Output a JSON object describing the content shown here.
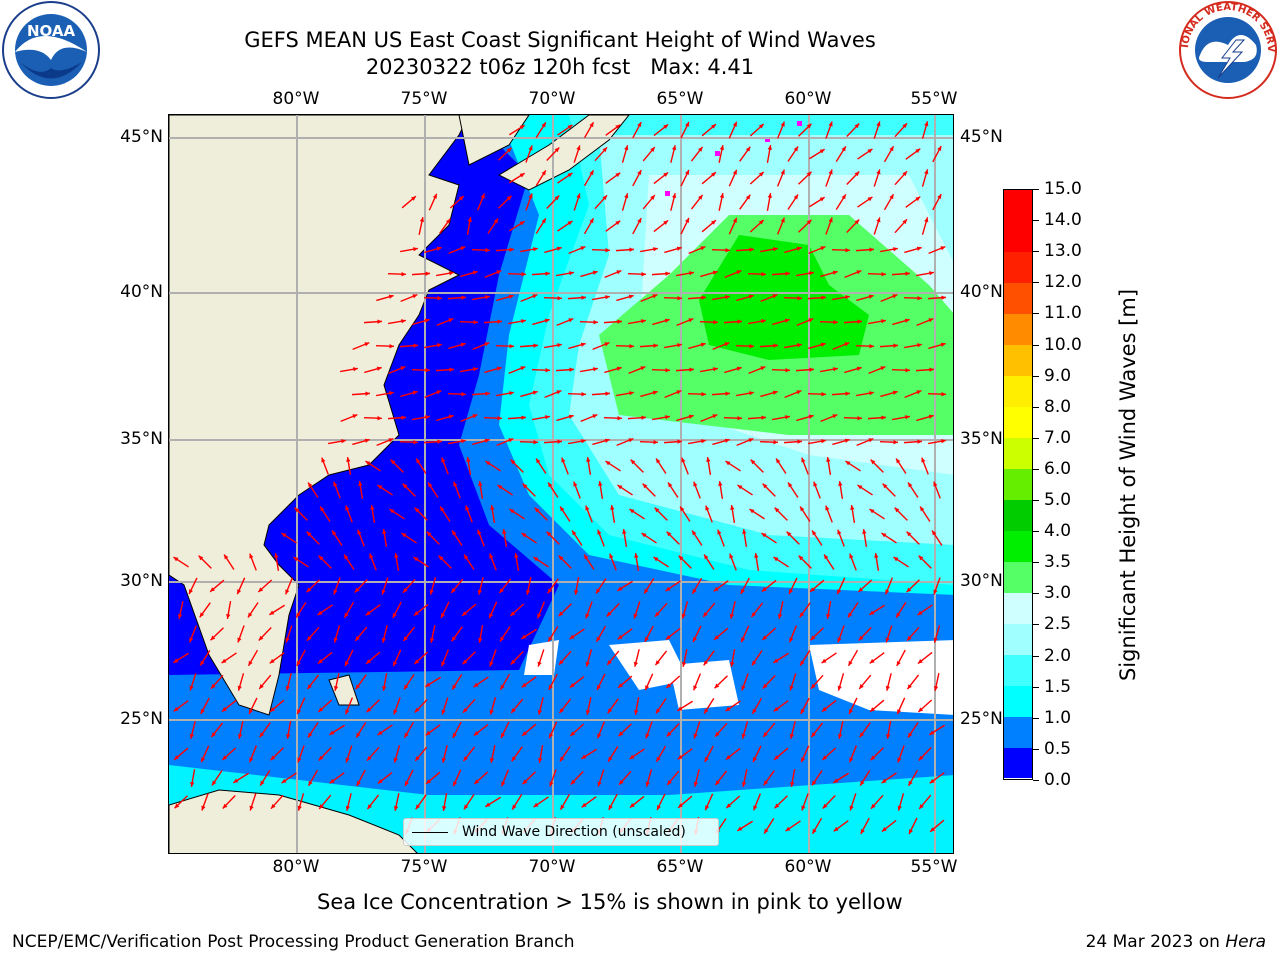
{
  "title": {
    "line1": "GEFS MEAN US East Coast Significant Height of Wind Waves",
    "line2": "20230322 t06z 120h fcst   Max: 4.41"
  },
  "map": {
    "lon_ticks": [
      "80°W",
      "75°W",
      "70°W",
      "65°W",
      "60°W",
      "55°W"
    ],
    "lat_ticks": [
      "45°N",
      "40°N",
      "35°N",
      "30°N",
      "25°N"
    ],
    "legend_label": "Wind Wave Direction (unscaled)",
    "arrow_color": "#ff0000",
    "land_color": "#efeedb",
    "grid_color": "#b0b0b0"
  },
  "colorbar": {
    "label": "Significant Height of Wind Waves [m]",
    "ticks": [
      "0.0",
      "0.5",
      "1.0",
      "1.5",
      "2.0",
      "2.5",
      "3.0",
      "3.5",
      "4.0",
      "5.0",
      "6.0",
      "7.0",
      "8.0",
      "9.0",
      "10.0",
      "11.0",
      "12.0",
      "13.0",
      "14.0",
      "15.0"
    ],
    "colors": [
      "#0000ff",
      "#0080ff",
      "#00ffff",
      "#40ffff",
      "#a0ffff",
      "#d0ffff",
      "#55ff66",
      "#00ee00",
      "#00cc00",
      "#66ee00",
      "#ccff00",
      "#ffff00",
      "#ffee00",
      "#ffc000",
      "#ff8c00",
      "#ff5000",
      "#ff2000",
      "#ff0000",
      "#ff0000"
    ]
  },
  "note": "Sea Ice Concentration > 15% is shown in pink to yellow",
  "footer": {
    "left": "NCEP/EMC/Verification Post Processing Product Generation Branch",
    "date": "24 Mar 2023 on ",
    "machine": "Hera"
  },
  "logos": {
    "noaa_text": "NOAA",
    "nws_text": "NATIONAL WEATHER SERVICE"
  }
}
